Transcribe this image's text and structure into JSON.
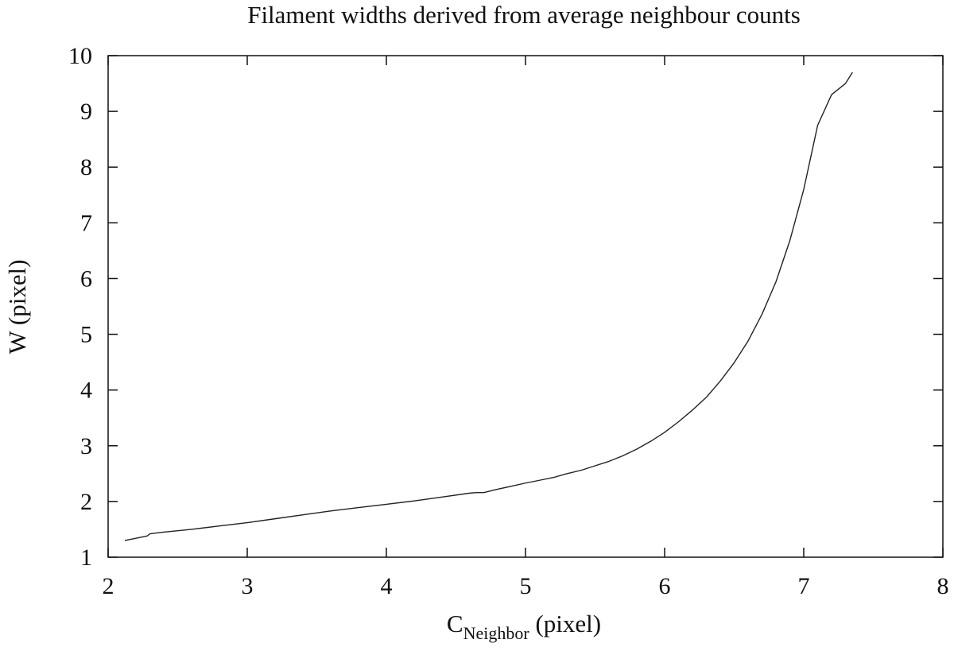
{
  "chart_data": {
    "type": "line",
    "title": "Filament widths derived from average neighbour counts",
    "xlabel_main": "C",
    "xlabel_sub": "Neighbor",
    "xlabel_unit": " (pixel)",
    "ylabel": "W (pixel)",
    "xlim": [
      2,
      8
    ],
    "ylim": [
      1,
      10
    ],
    "x_ticks": [
      "2",
      "3",
      "4",
      "5",
      "6",
      "7",
      "8"
    ],
    "y_ticks": [
      "1",
      "2",
      "3",
      "4",
      "5",
      "6",
      "7",
      "8",
      "9",
      "10"
    ],
    "grid": false,
    "legend": "none",
    "line_color": "#222222",
    "series": [
      {
        "x": [
          2.12,
          2.2,
          2.28,
          2.3,
          2.4,
          2.6,
          2.8,
          3.0,
          3.2,
          3.4,
          3.6,
          3.8,
          4.0,
          4.2,
          4.4,
          4.6,
          4.65,
          4.7,
          4.8,
          5.0,
          5.1,
          5.2,
          5.3,
          5.4,
          5.5,
          5.6,
          5.7,
          5.8,
          5.9,
          6.0,
          6.1,
          6.2,
          6.3,
          6.4,
          6.5,
          6.6,
          6.7,
          6.8,
          6.9,
          7.0,
          7.1,
          7.2,
          7.3,
          7.35
        ],
        "y": [
          1.3,
          1.34,
          1.38,
          1.42,
          1.45,
          1.5,
          1.56,
          1.62,
          1.69,
          1.76,
          1.83,
          1.89,
          1.95,
          2.01,
          2.08,
          2.15,
          2.16,
          2.16,
          2.22,
          2.33,
          2.38,
          2.43,
          2.5,
          2.56,
          2.64,
          2.72,
          2.82,
          2.94,
          3.08,
          3.24,
          3.43,
          3.64,
          3.87,
          4.16,
          4.49,
          4.88,
          5.36,
          5.94,
          6.68,
          7.6,
          8.75,
          9.3,
          9.5,
          9.7
        ]
      }
    ]
  }
}
